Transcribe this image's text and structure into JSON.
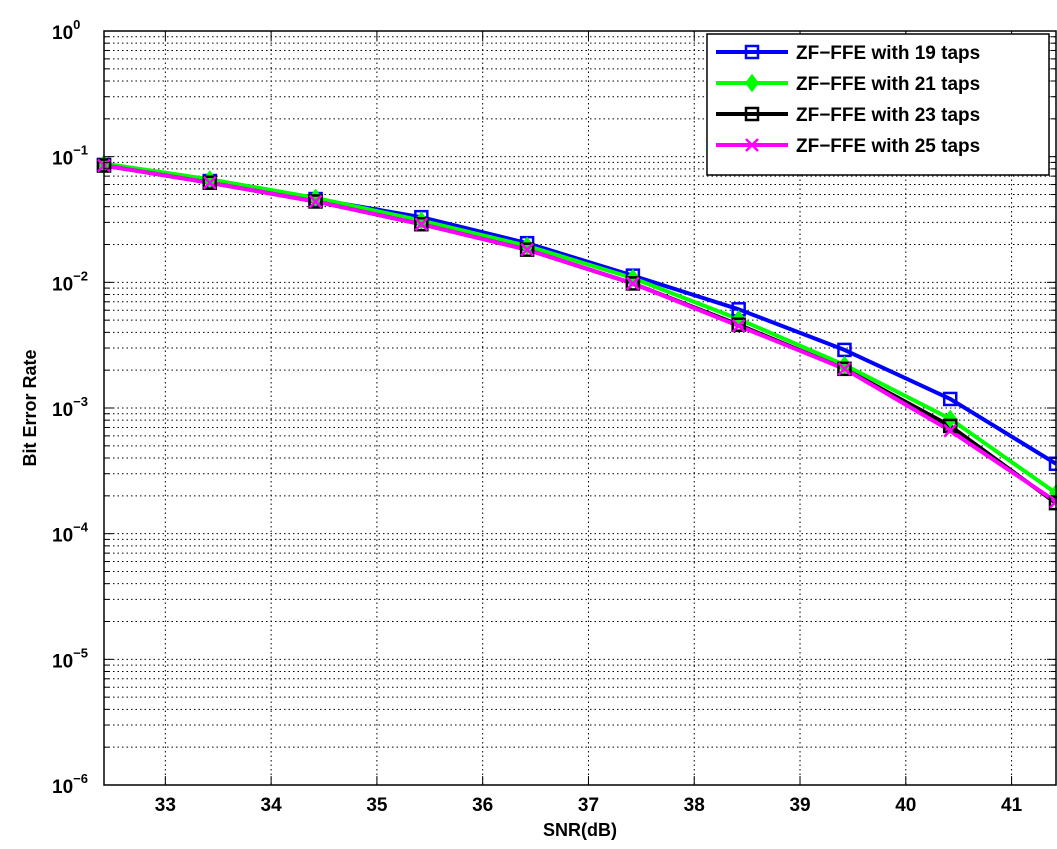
{
  "chart_data": {
    "type": "line",
    "title": "",
    "xlabel": "SNR(dB)",
    "ylabel": "Bit Error Rate",
    "x_scale": "linear",
    "y_scale": "log",
    "xlim": [
      32.42,
      41.42
    ],
    "ylim": [
      1e-06,
      1
    ],
    "xticks": [
      33,
      34,
      35,
      36,
      37,
      38,
      39,
      40,
      41
    ],
    "yticks": [
      {
        "base": "10",
        "exp": "0",
        "value": 1
      },
      {
        "base": "10",
        "exp": "−1",
        "value": 0.1
      },
      {
        "base": "10",
        "exp": "−2",
        "value": 0.01
      },
      {
        "base": "10",
        "exp": "−3",
        "value": 0.001
      },
      {
        "base": "10",
        "exp": "−4",
        "value": 0.0001
      },
      {
        "base": "10",
        "exp": "−5",
        "value": 1e-05
      },
      {
        "base": "10",
        "exp": "−6",
        "value": 1e-06
      }
    ],
    "grid": true,
    "grid_style": "dotted",
    "legend_position": "top-right",
    "x": [
      32.42,
      33.42,
      34.42,
      35.42,
      36.42,
      37.42,
      38.42,
      39.42,
      40.42,
      41.42
    ],
    "series": [
      {
        "name": "ZF−FFE with 19 taps",
        "color": "#0000ff",
        "marker": "square",
        "values": [
          0.086,
          0.064,
          0.046,
          0.033,
          0.0205,
          0.0113,
          0.0061,
          0.0029,
          0.00118,
          0.00036
        ]
      },
      {
        "name": "ZF−FFE with 21 taps",
        "color": "#00ff00",
        "marker": "diamond",
        "values": [
          0.088,
          0.066,
          0.047,
          0.031,
          0.0195,
          0.0108,
          0.0051,
          0.0022,
          0.00082,
          0.00021
        ]
      },
      {
        "name": "ZF−FFE with 23 taps",
        "color": "#000000",
        "marker": "square",
        "values": [
          0.085,
          0.062,
          0.044,
          0.029,
          0.0182,
          0.0098,
          0.0046,
          0.00205,
          0.00072,
          0.000175
        ]
      },
      {
        "name": "ZF−FFE with 25 taps",
        "color": "#ff00ff",
        "marker": "x",
        "values": [
          0.085,
          0.062,
          0.044,
          0.029,
          0.0182,
          0.0098,
          0.0045,
          0.00205,
          0.00066,
          0.00018
        ]
      }
    ]
  }
}
